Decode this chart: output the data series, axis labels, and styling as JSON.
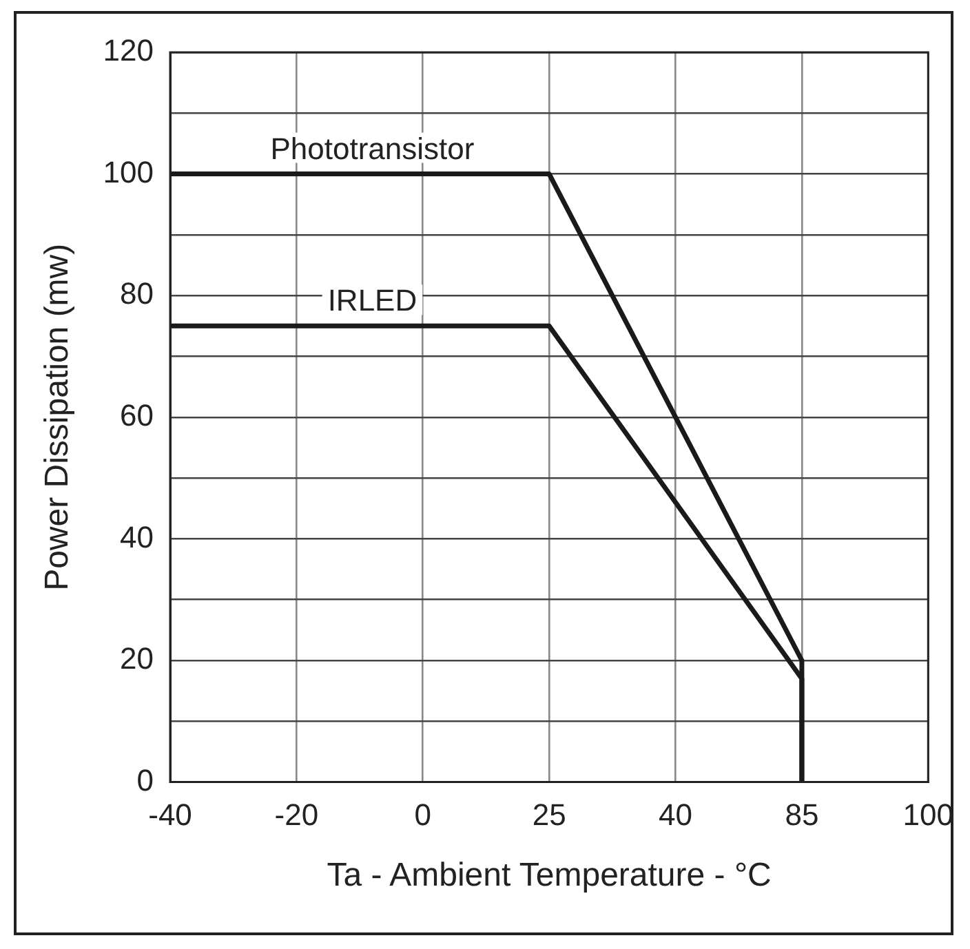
{
  "chart_data": {
    "type": "line",
    "xlabel": "Ta - Ambient Temperature - °C",
    "ylabel": "Power Dissipation (mw)",
    "categories": [
      "-40",
      "-20",
      "0",
      "25",
      "40",
      "85",
      "100"
    ],
    "series": [
      {
        "name": "Phototransistor",
        "color": "#1a1a1a",
        "x": [
          "-40",
          "25",
          "85",
          "85"
        ],
        "values": [
          100,
          100,
          20,
          0
        ]
      },
      {
        "name": "IRLED",
        "color": "#1a1a1a",
        "x": [
          "-40",
          "25",
          "85",
          "85"
        ],
        "values": [
          75,
          75,
          17,
          0
        ]
      }
    ],
    "ylim": [
      0,
      120
    ],
    "yticks": [
      0,
      {
        "value": 10,
        "label": null
      },
      20,
      {
        "value": 30,
        "label": null
      },
      40,
      {
        "value": 50,
        "label": null
      },
      60,
      {
        "value": 70,
        "label": null
      },
      80,
      {
        "value": 90,
        "label": null
      },
      100,
      {
        "value": 110,
        "label": null
      },
      120
    ],
    "grid": true,
    "legend": false,
    "marker": "none",
    "line_style": "solid"
  }
}
